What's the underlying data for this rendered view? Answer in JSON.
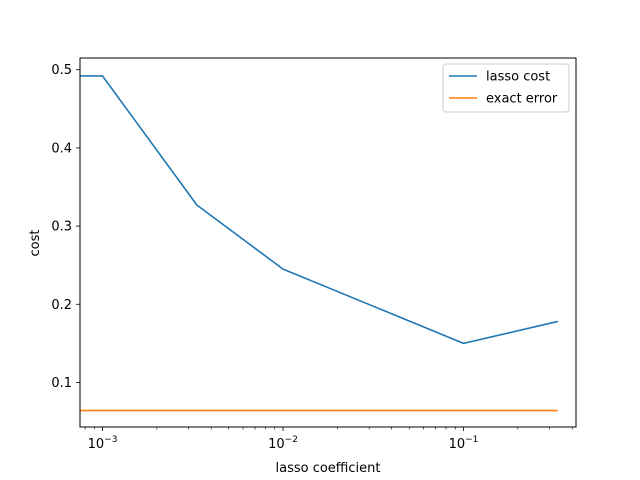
{
  "chart_data": {
    "type": "line",
    "title": "",
    "xlabel": "lasso coefficient",
    "ylabel": "cost",
    "xscale": "log",
    "xlim": [
      0.00075,
      0.42
    ],
    "ylim": [
      0.043,
      0.515
    ],
    "grid": false,
    "legend_position": "top-right",
    "x_tick_values": [
      0.001,
      0.01,
      0.1
    ],
    "x_tick_labels": [
      {
        "base": "10",
        "exp": "−3"
      },
      {
        "base": "10",
        "exp": "−2"
      },
      {
        "base": "10",
        "exp": "−1"
      }
    ],
    "y_ticks": [
      0.1,
      0.2,
      0.3,
      0.4,
      0.5
    ],
    "y_tick_labels": [
      "0.1",
      "0.2",
      "0.3",
      "0.4",
      "0.5"
    ],
    "series": [
      {
        "name": "lasso cost",
        "color": "#1f77b4",
        "x": [
          0.00075,
          0.001,
          0.00333,
          0.01,
          0.1,
          0.333
        ],
        "y": [
          0.492,
          0.492,
          0.327,
          0.245,
          0.15,
          0.178
        ]
      },
      {
        "name": "exact error",
        "color": "#ff7f0e",
        "x": [
          0.00075,
          0.333
        ],
        "y": [
          0.064,
          0.064
        ]
      }
    ]
  }
}
